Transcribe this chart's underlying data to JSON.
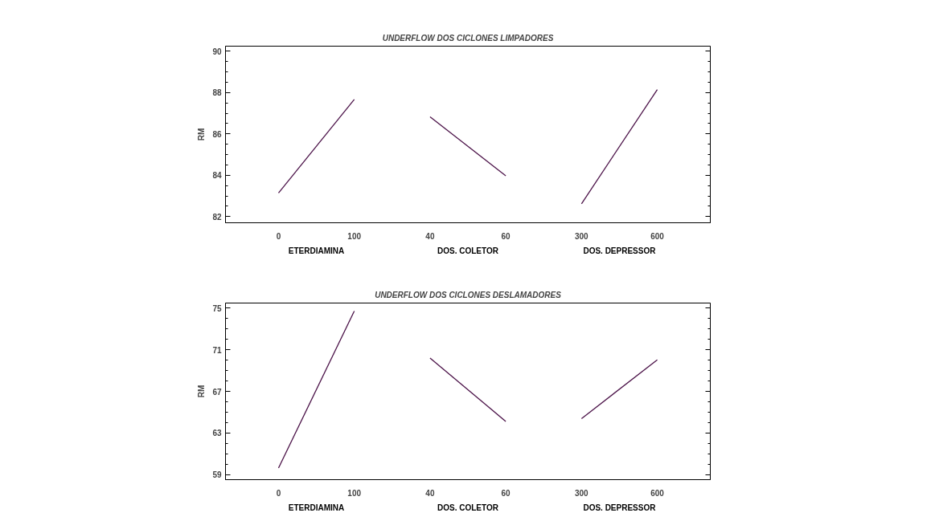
{
  "chart_data": [
    {
      "type": "line",
      "title": "UNDERFLOW DOS CICLONES LIMPADORES",
      "ylabel": "RM",
      "categories": [
        "0",
        "100",
        "40",
        "60",
        "300",
        "600"
      ],
      "annotations": [
        "ETERDIAMINA",
        "DOS. COLETOR",
        "DOS. DEPRESSOR"
      ],
      "series": [
        {
          "color": "#4b1248",
          "values": [
            83.14,
            87.67,
            null,
            null,
            null,
            null
          ]
        },
        {
          "color": "#4b1248",
          "values": [
            null,
            null,
            86.83,
            83.97,
            null,
            null
          ]
        },
        {
          "color": "#4b1248",
          "values": [
            null,
            null,
            null,
            null,
            82.62,
            88.15
          ]
        }
      ],
      "ylim": [
        81.7,
        90.25
      ],
      "yticks": [
        82,
        84,
        86,
        88,
        90
      ],
      "grid": false
    },
    {
      "type": "line",
      "title": "UNDERFLOW DOS CICLONES DESLAMADORES",
      "ylabel": "RM",
      "categories": [
        "0",
        "100",
        "40",
        "60",
        "300",
        "600"
      ],
      "annotations": [
        "ETERDIAMINA",
        "DOS. COLETOR",
        "DOS. DEPRESSOR"
      ],
      "series": [
        {
          "color": "#4b1248",
          "values": [
            59.62,
            74.73,
            null,
            null,
            null,
            null
          ]
        },
        {
          "color": "#4b1248",
          "values": [
            null,
            null,
            70.2,
            64.11,
            null,
            null
          ]
        },
        {
          "color": "#4b1248",
          "values": [
            null,
            null,
            null,
            null,
            64.37,
            70.04
          ]
        }
      ],
      "ylim": [
        58.5,
        75.5
      ],
      "yticks": [
        59,
        63,
        67,
        71,
        75
      ],
      "grid": false
    }
  ]
}
